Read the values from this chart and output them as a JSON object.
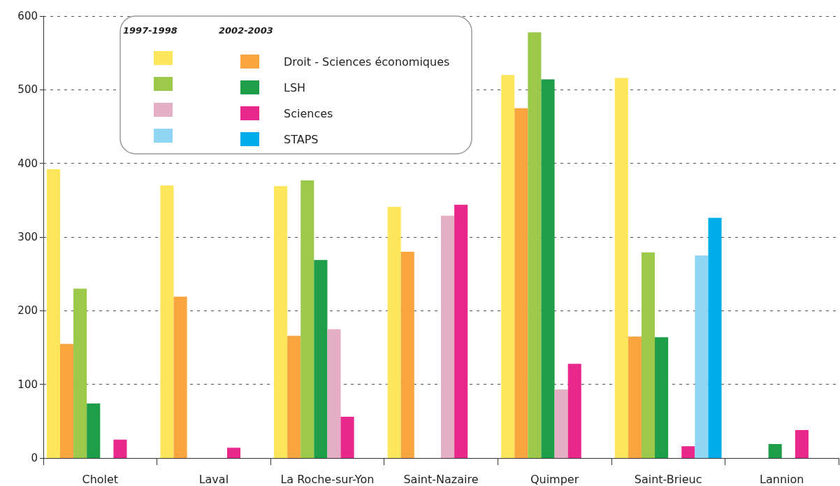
{
  "chart_data": {
    "type": "bar",
    "categories": [
      "Cholet",
      "Laval",
      "La Roche-sur-Yon",
      "Saint-Nazaire",
      "Quimper",
      "Saint-Brieuc",
      "Lannion"
    ],
    "series": [
      {
        "color": "#fde65b",
        "values": [
          392,
          370,
          369,
          341,
          520,
          516,
          null
        ]
      },
      {
        "name": "Droit - Sciences économiques",
        "color": "#f9a53f",
        "values": [
          155,
          219,
          166,
          280,
          475,
          165,
          null
        ]
      },
      {
        "color": "#9dc94b",
        "values": [
          230,
          null,
          377,
          null,
          578,
          279,
          null
        ]
      },
      {
        "name": "LSH",
        "color": "#1e9e48",
        "values": [
          74,
          null,
          269,
          null,
          514,
          164,
          19
        ]
      },
      {
        "color": "#e4aec5",
        "values": [
          null,
          null,
          175,
          329,
          93,
          null,
          null
        ]
      },
      {
        "name": "Sciences",
        "color": "#e8288b",
        "values": [
          25,
          14,
          56,
          344,
          128,
          16,
          38
        ]
      },
      {
        "color": "#8fd6f4",
        "values": [
          null,
          null,
          null,
          null,
          null,
          275,
          null
        ]
      },
      {
        "name": "STAPS",
        "color": "#00adeb",
        "values": [
          null,
          null,
          null,
          null,
          null,
          326,
          null
        ]
      }
    ],
    "ylim": [
      0,
      600
    ],
    "yticks": [
      0,
      100,
      200,
      300,
      400,
      500,
      600
    ],
    "grid": "y",
    "legend": "top left",
    "annotations": [
      "1997-1998",
      "2002-2003"
    ]
  }
}
